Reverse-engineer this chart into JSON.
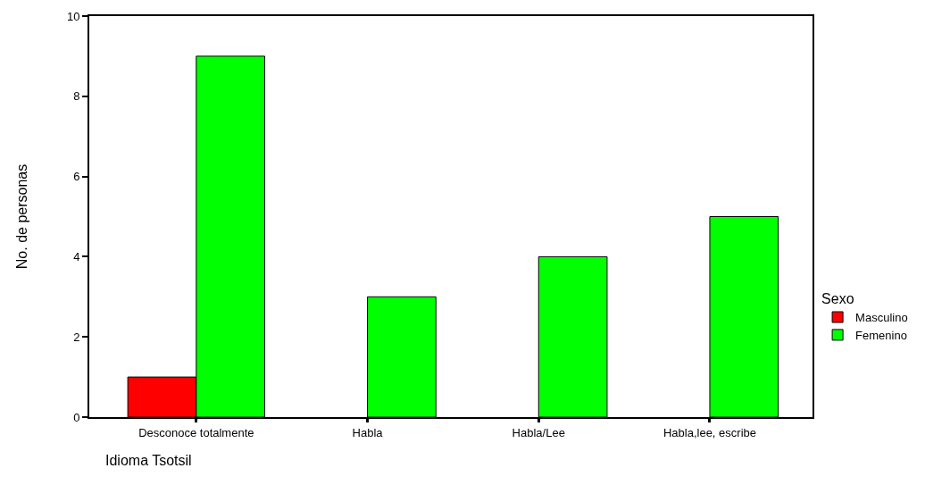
{
  "chart_data": {
    "type": "bar",
    "xlabel": "Idioma Tsotsil",
    "ylabel": "No. de personas",
    "legend_title": "Sexo",
    "categories": [
      "Desconoce totalmente",
      "Habla",
      "Habla/Lee",
      "Habla,lee, escribe"
    ],
    "series": [
      {
        "name": "Masculino",
        "color": "#ff0000",
        "values": [
          1,
          0,
          0,
          0
        ]
      },
      {
        "name": "Femenino",
        "color": "#00ff00",
        "values": [
          9,
          3,
          4,
          5
        ]
      }
    ],
    "ylim": [
      0,
      10
    ],
    "yticks": [
      0,
      2,
      4,
      6,
      8,
      10
    ],
    "grid": false,
    "legend": "right"
  }
}
